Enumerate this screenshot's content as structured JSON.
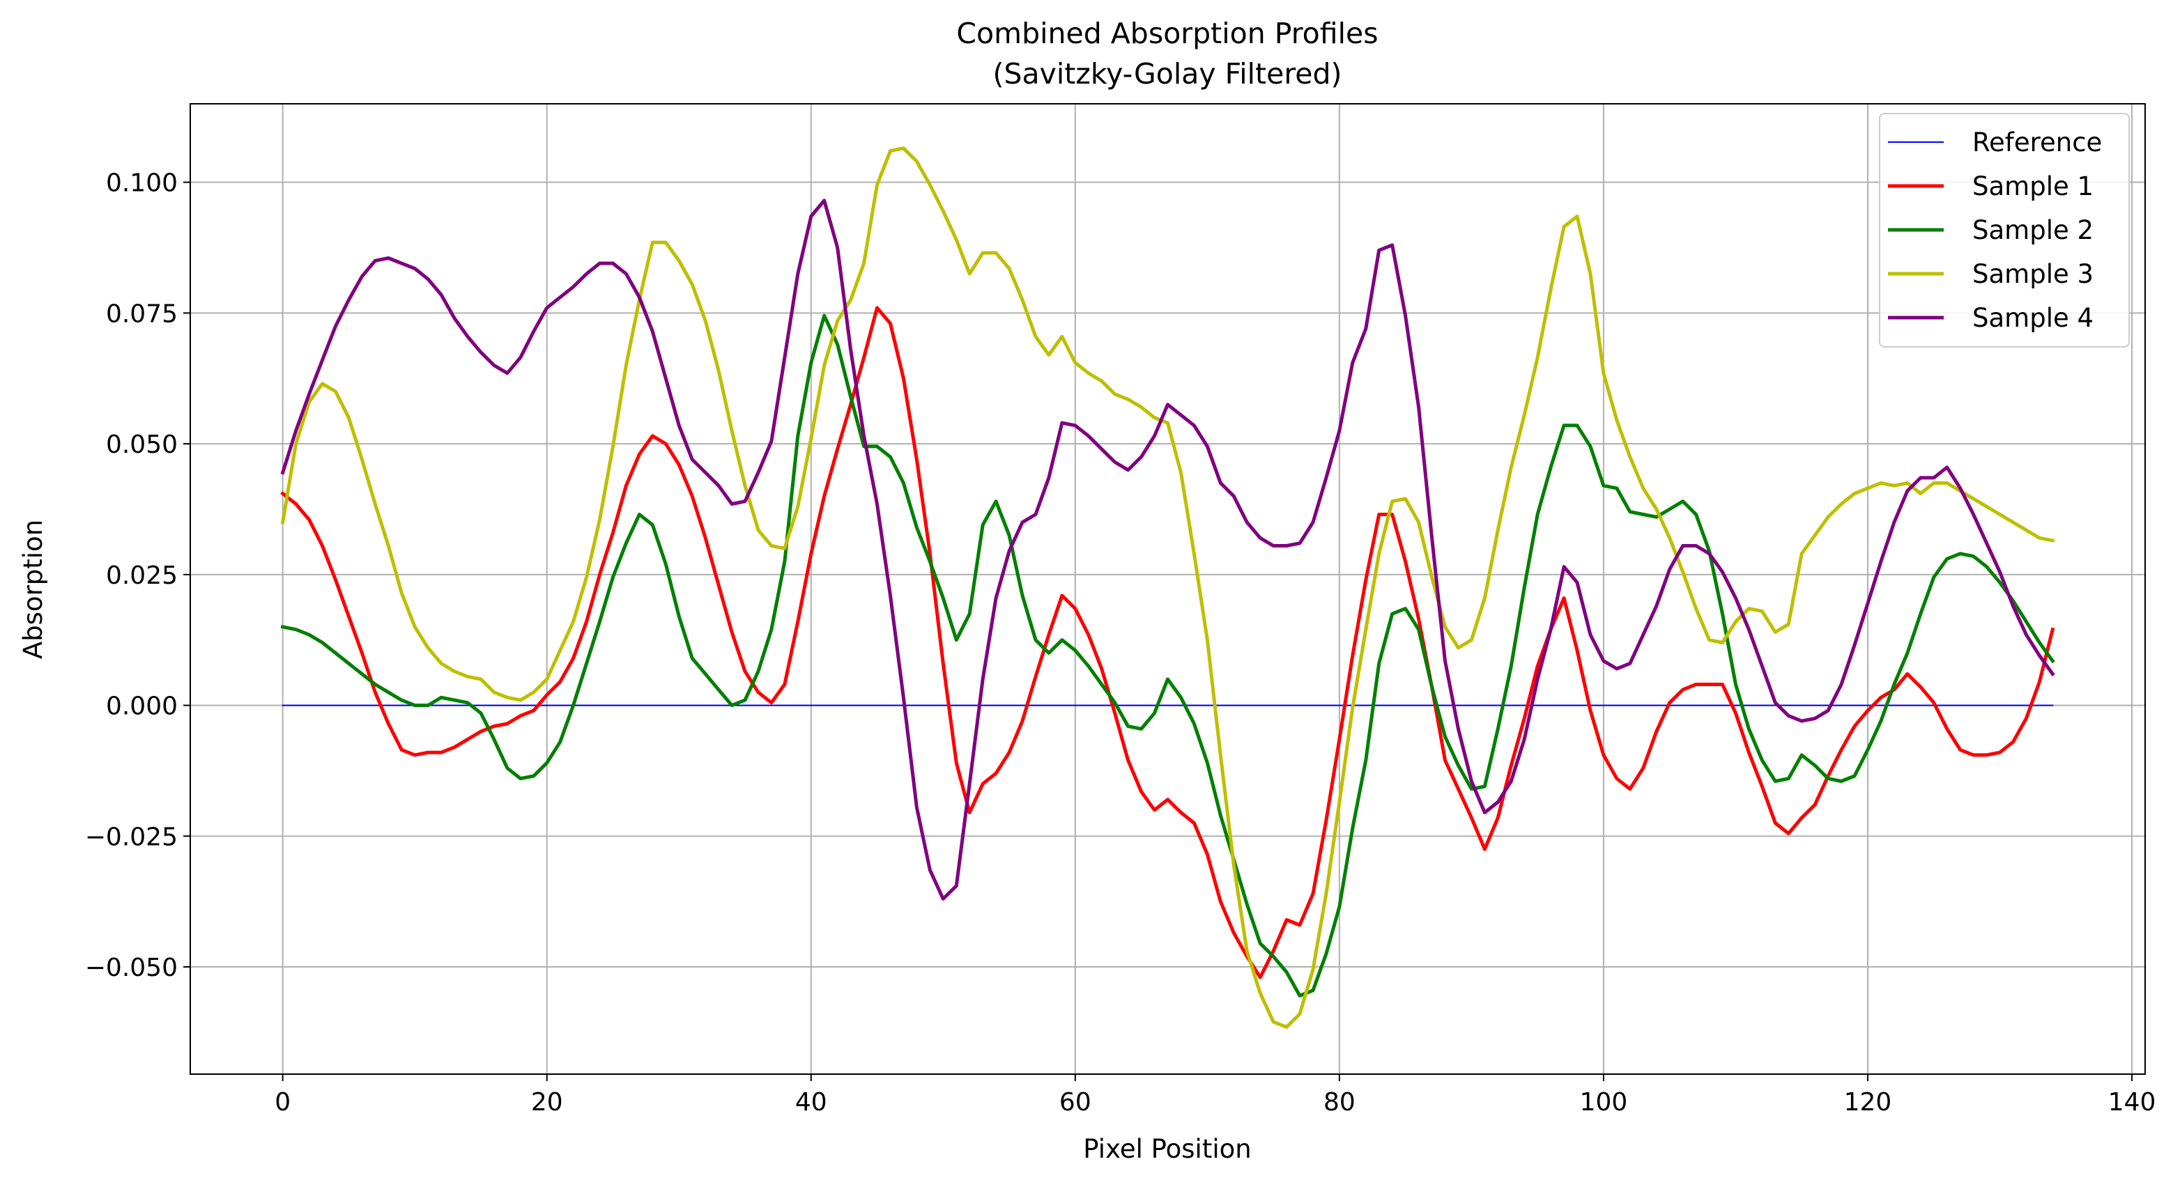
{
  "chart_data": {
    "type": "line",
    "title_lines": [
      "Combined Absorption Profiles",
      "(Savitzky-Golay Filtered)"
    ],
    "xlabel": "Pixel Position",
    "ylabel": "Absorption",
    "xlim": [
      -7,
      141
    ],
    "ylim": [
      -0.0705,
      0.115
    ],
    "x_ticks": [
      0,
      20,
      40,
      60,
      80,
      100,
      120,
      140
    ],
    "x_tick_labels": [
      "0",
      "20",
      "40",
      "60",
      "80",
      "100",
      "120",
      "140"
    ],
    "y_ticks": [
      -0.05,
      -0.025,
      0.0,
      0.025,
      0.05,
      0.075,
      0.1
    ],
    "y_tick_labels": [
      "−0.050",
      "−0.025",
      "0.000",
      "0.025",
      "0.050",
      "0.075",
      "0.100"
    ],
    "grid": true,
    "legend_position": "top-right",
    "x_start": 0,
    "x_step": 1,
    "series": [
      {
        "name": "Reference",
        "color": "#0000ff",
        "width": 1,
        "values": [
          0,
          0,
          0,
          0,
          0,
          0,
          0,
          0,
          0,
          0,
          0,
          0,
          0,
          0,
          0,
          0,
          0,
          0,
          0,
          0,
          0,
          0,
          0,
          0,
          0,
          0,
          0,
          0,
          0,
          0,
          0,
          0,
          0,
          0,
          0,
          0,
          0,
          0,
          0,
          0,
          0,
          0,
          0,
          0,
          0,
          0,
          0,
          0,
          0,
          0,
          0,
          0,
          0,
          0,
          0,
          0,
          0,
          0,
          0,
          0,
          0,
          0,
          0,
          0,
          0,
          0,
          0,
          0,
          0,
          0,
          0,
          0,
          0,
          0,
          0,
          0,
          0,
          0,
          0,
          0,
          0,
          0,
          0,
          0,
          0,
          0,
          0,
          0,
          0,
          0,
          0,
          0,
          0,
          0,
          0,
          0,
          0,
          0,
          0,
          0,
          0,
          0,
          0,
          0,
          0,
          0,
          0,
          0,
          0,
          0,
          0,
          0,
          0,
          0,
          0,
          0,
          0,
          0,
          0,
          0,
          0,
          0,
          0,
          0,
          0,
          0,
          0,
          0,
          0,
          0,
          0,
          0,
          0,
          0,
          0
        ]
      },
      {
        "name": "Sample 1",
        "color": "#ff0000",
        "width": 2.5,
        "values": [
          0.0405,
          0.0385,
          0.0355,
          0.0305,
          0.024,
          0.017,
          0.01,
          0.0025,
          -0.0035,
          -0.0085,
          -0.0095,
          -0.009,
          -0.009,
          -0.008,
          -0.0065,
          -0.005,
          -0.004,
          -0.0035,
          -0.002,
          -0.001,
          0.002,
          0.0045,
          0.009,
          0.016,
          0.025,
          0.033,
          0.042,
          0.048,
          0.0515,
          0.05,
          0.046,
          0.04,
          0.032,
          0.023,
          0.014,
          0.0065,
          0.0025,
          0.0005,
          0.004,
          0.016,
          0.029,
          0.04,
          0.049,
          0.0575,
          0.0665,
          0.076,
          0.073,
          0.0625,
          0.047,
          0.029,
          0.008,
          -0.011,
          -0.0205,
          -0.015,
          -0.013,
          -0.009,
          -0.003,
          0.0055,
          0.0135,
          0.021,
          0.0185,
          0.0135,
          0.007,
          -0.0015,
          -0.0105,
          -0.0165,
          -0.02,
          -0.018,
          -0.0205,
          -0.0225,
          -0.0285,
          -0.0375,
          -0.0435,
          -0.048,
          -0.052,
          -0.047,
          -0.041,
          -0.042,
          -0.036,
          -0.022,
          -0.0065,
          0.0095,
          0.024,
          0.0365,
          0.0365,
          0.0275,
          0.0165,
          0.0035,
          -0.0105,
          -0.016,
          -0.0215,
          -0.0275,
          -0.0215,
          -0.0115,
          -0.0025,
          0.0075,
          0.0145,
          0.0205,
          0.0105,
          -0.001,
          -0.0095,
          -0.014,
          -0.016,
          -0.012,
          -0.005,
          0.0005,
          0.003,
          0.004,
          0.004,
          0.004,
          -0.0015,
          -0.009,
          -0.0155,
          -0.0225,
          -0.0245,
          -0.0215,
          -0.019,
          -0.0135,
          -0.0085,
          -0.004,
          -0.001,
          0.0015,
          0.003,
          0.006,
          0.0035,
          0.0005,
          -0.0045,
          -0.0085,
          -0.0095,
          -0.0095,
          -0.009,
          -0.007,
          -0.0025,
          0.0045,
          0.0145
        ]
      },
      {
        "name": "Sample 2",
        "color": "#008000",
        "width": 2.5,
        "values": [
          0.015,
          0.0145,
          0.0135,
          0.012,
          0.01,
          0.008,
          0.006,
          0.004,
          0.0025,
          0.001,
          0.0,
          0.0,
          0.0015,
          0.001,
          0.0005,
          -0.0015,
          -0.0065,
          -0.012,
          -0.014,
          -0.0135,
          -0.011,
          -0.007,
          0.0,
          0.008,
          0.016,
          0.0245,
          0.031,
          0.0365,
          0.0345,
          0.027,
          0.017,
          0.009,
          0.006,
          0.003,
          0.0,
          0.001,
          0.0065,
          0.0145,
          0.0275,
          0.0515,
          0.0655,
          0.0745,
          0.069,
          0.059,
          0.0495,
          0.0495,
          0.0475,
          0.0425,
          0.034,
          0.0275,
          0.0205,
          0.0125,
          0.0175,
          0.0345,
          0.039,
          0.0325,
          0.021,
          0.0125,
          0.01,
          0.0125,
          0.0105,
          0.0075,
          0.004,
          0.0005,
          -0.004,
          -0.0045,
          -0.0015,
          0.005,
          0.0015,
          -0.0035,
          -0.011,
          -0.021,
          -0.0295,
          -0.038,
          -0.0455,
          -0.048,
          -0.051,
          -0.0555,
          -0.0545,
          -0.0475,
          -0.0385,
          -0.0235,
          -0.0105,
          0.008,
          0.0175,
          0.0185,
          0.0145,
          0.0035,
          -0.006,
          -0.0115,
          -0.016,
          -0.0155,
          -0.0045,
          0.0075,
          0.0225,
          0.0365,
          0.0455,
          0.0535,
          0.0535,
          0.0495,
          0.042,
          0.0415,
          0.037,
          0.0365,
          0.036,
          0.0375,
          0.039,
          0.0365,
          0.0295,
          0.0175,
          0.004,
          -0.0045,
          -0.0105,
          -0.0145,
          -0.014,
          -0.0095,
          -0.0115,
          -0.014,
          -0.0145,
          -0.0135,
          -0.0085,
          -0.003,
          0.004,
          0.01,
          0.0175,
          0.0245,
          0.028,
          0.029,
          0.0285,
          0.0265,
          0.0235,
          0.02,
          0.016,
          0.012,
          0.0085
        ]
      },
      {
        "name": "Sample 3",
        "color": "#bfbf00",
        "width": 2.5,
        "values": [
          0.035,
          0.05,
          0.058,
          0.0615,
          0.06,
          0.055,
          0.047,
          0.0385,
          0.0305,
          0.0215,
          0.015,
          0.011,
          0.008,
          0.0065,
          0.0055,
          0.005,
          0.0025,
          0.0015,
          0.001,
          0.0025,
          0.005,
          0.0105,
          0.016,
          0.0245,
          0.0355,
          0.0495,
          0.065,
          0.0775,
          0.0885,
          0.0885,
          0.085,
          0.0805,
          0.0735,
          0.064,
          0.0525,
          0.042,
          0.0335,
          0.0305,
          0.03,
          0.038,
          0.051,
          0.065,
          0.0735,
          0.0775,
          0.0845,
          0.0995,
          0.106,
          0.1065,
          0.104,
          0.0995,
          0.0945,
          0.089,
          0.0825,
          0.0865,
          0.0865,
          0.0835,
          0.0775,
          0.0705,
          0.067,
          0.0705,
          0.0655,
          0.0635,
          0.062,
          0.0595,
          0.0585,
          0.057,
          0.055,
          0.054,
          0.0445,
          0.029,
          0.0125,
          -0.0095,
          -0.0305,
          -0.047,
          -0.055,
          -0.0605,
          -0.0615,
          -0.059,
          -0.0505,
          -0.036,
          -0.0185,
          -0.0005,
          0.0145,
          0.029,
          0.039,
          0.0395,
          0.035,
          0.0245,
          0.015,
          0.011,
          0.0125,
          0.0205,
          0.0335,
          0.0455,
          0.0555,
          0.0665,
          0.0795,
          0.0915,
          0.0935,
          0.0825,
          0.0635,
          0.0545,
          0.0475,
          0.0415,
          0.0375,
          0.032,
          0.0255,
          0.0185,
          0.0125,
          0.012,
          0.016,
          0.0185,
          0.018,
          0.014,
          0.0155,
          0.029,
          0.0325,
          0.036,
          0.0385,
          0.0405,
          0.0415,
          0.0425,
          0.042,
          0.0425,
          0.0405,
          0.0425,
          0.0425,
          0.041,
          0.0395,
          0.038,
          0.0365,
          0.035,
          0.0335,
          0.032,
          0.0315
        ]
      },
      {
        "name": "Sample 4",
        "color": "#800080",
        "width": 2.5,
        "values": [
          0.0445,
          0.0525,
          0.0595,
          0.066,
          0.0725,
          0.0775,
          0.082,
          0.085,
          0.0855,
          0.0845,
          0.0835,
          0.0815,
          0.0785,
          0.074,
          0.0705,
          0.0675,
          0.065,
          0.0635,
          0.0665,
          0.0715,
          0.076,
          0.078,
          0.08,
          0.0825,
          0.0845,
          0.0845,
          0.0825,
          0.078,
          0.0715,
          0.0625,
          0.0535,
          0.047,
          0.0445,
          0.042,
          0.0385,
          0.039,
          0.0445,
          0.0505,
          0.0665,
          0.0825,
          0.0935,
          0.0965,
          0.0875,
          0.068,
          0.0515,
          0.0385,
          0.021,
          0.0015,
          -0.0195,
          -0.0315,
          -0.037,
          -0.0345,
          -0.015,
          0.005,
          0.0205,
          0.0295,
          0.035,
          0.0365,
          0.0435,
          0.054,
          0.0535,
          0.0515,
          0.049,
          0.0465,
          0.045,
          0.0475,
          0.0515,
          0.0575,
          0.0555,
          0.0535,
          0.0495,
          0.0425,
          0.04,
          0.035,
          0.032,
          0.0305,
          0.0305,
          0.031,
          0.035,
          0.0435,
          0.0525,
          0.0655,
          0.072,
          0.087,
          0.088,
          0.0745,
          0.057,
          0.032,
          0.0085,
          -0.0045,
          -0.0145,
          -0.0205,
          -0.0185,
          -0.0145,
          -0.0065,
          0.005,
          0.0145,
          0.0265,
          0.0235,
          0.0135,
          0.0085,
          0.007,
          0.008,
          0.0135,
          0.019,
          0.026,
          0.0305,
          0.0305,
          0.029,
          0.0255,
          0.0205,
          0.0145,
          0.0075,
          0.0005,
          -0.002,
          -0.003,
          -0.0025,
          -0.001,
          0.004,
          0.0115,
          0.0195,
          0.0275,
          0.035,
          0.041,
          0.0435,
          0.0435,
          0.0455,
          0.0415,
          0.0365,
          0.031,
          0.0255,
          0.019,
          0.0135,
          0.0095,
          0.006
        ]
      }
    ]
  }
}
